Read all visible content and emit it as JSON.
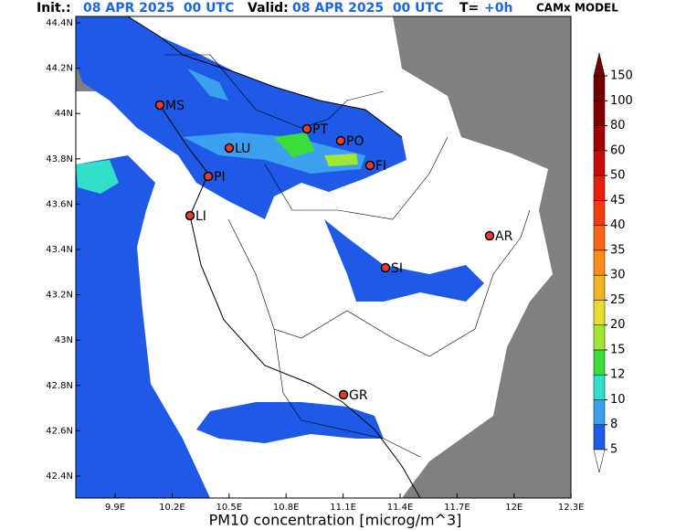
{
  "header": {
    "init_label": "Init.:",
    "init_time": "08 APR 2025  00 UTC",
    "valid_label": "Valid:",
    "valid_time": "08 APR 2025  00 UTC",
    "step_label": "T=",
    "step": "+0h",
    "model": "CAMx MODEL"
  },
  "map": {
    "lat_ticks": [
      "44.4N",
      "44.2N",
      "44N",
      "43.8N",
      "43.6N",
      "43.4N",
      "43.2N",
      "43N",
      "42.8N",
      "42.6N",
      "42.4N"
    ],
    "lon_ticks": [
      "9.9E",
      "10.2E",
      "10.5E",
      "10.8E",
      "11.1E",
      "11.4E",
      "11.7E",
      "12E",
      "12.3E"
    ],
    "cities": [
      "MS",
      "PT",
      "PO",
      "LU",
      "FI",
      "PI",
      "LI",
      "AR",
      "SI",
      "GR"
    ]
  },
  "colorbar": {
    "title": "PM10 concentration [microg/m^3]",
    "levels": [
      5,
      8,
      10,
      12,
      15,
      20,
      25,
      30,
      35,
      40,
      45,
      50,
      60,
      80,
      100,
      150
    ],
    "colors": [
      "#1e5ae6",
      "#3ca0f0",
      "#30e0c8",
      "#3cdc3c",
      "#a0e632",
      "#e6dc32",
      "#f0b428",
      "#fa8c1e",
      "#fa6414",
      "#f03c0f",
      "#e61e0a",
      "#c80a0a",
      "#a00000",
      "#820000",
      "#6e0000"
    ]
  }
}
